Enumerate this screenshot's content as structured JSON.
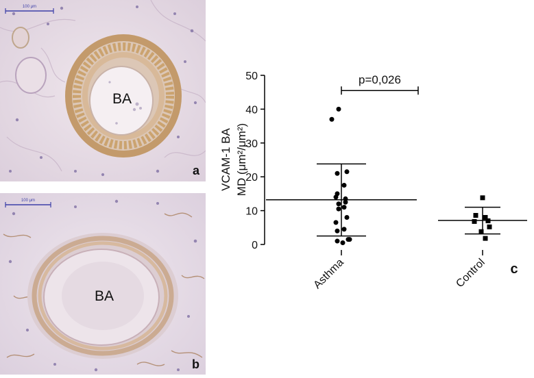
{
  "panel_a": {
    "scale_label": "100 μm",
    "lumen_label": "BA",
    "panel_letter": "a"
  },
  "panel_b": {
    "scale_label": "100 μm",
    "lumen_label": "BA",
    "panel_letter": "b"
  },
  "chart_data": {
    "type": "scatter",
    "panel_letter": "c",
    "ylabel_line1": "VCAM-1 BA",
    "ylabel_line2": "MD (μm²/μm²)",
    "ylim": [
      0,
      50
    ],
    "yticks": [
      0,
      10,
      20,
      30,
      40,
      50
    ],
    "categories": [
      "Asthma",
      "Control"
    ],
    "series": [
      {
        "category": "Asthma",
        "marker": "circle",
        "values": [
          40.0,
          37.0,
          21.5,
          21.0,
          17.5,
          15.0,
          14.0,
          13.5,
          12.0,
          12.5,
          11.0,
          10.5,
          8.0,
          6.5,
          4.5,
          4.0,
          1.5,
          1.0,
          1.5,
          0.5
        ],
        "mean": 13.2,
        "sd_upper": 23.8,
        "sd_lower": 2.5
      },
      {
        "category": "Control",
        "marker": "square",
        "values": [
          13.8,
          8.6,
          8.0,
          7.0,
          6.8,
          5.2,
          3.8,
          1.8
        ],
        "mean": 7.1,
        "sd_upper": 11.0,
        "sd_lower": 3.1
      }
    ],
    "annotation": {
      "text": "p=0,026",
      "from": "Asthma",
      "to": "Control",
      "y": 45.5
    }
  }
}
